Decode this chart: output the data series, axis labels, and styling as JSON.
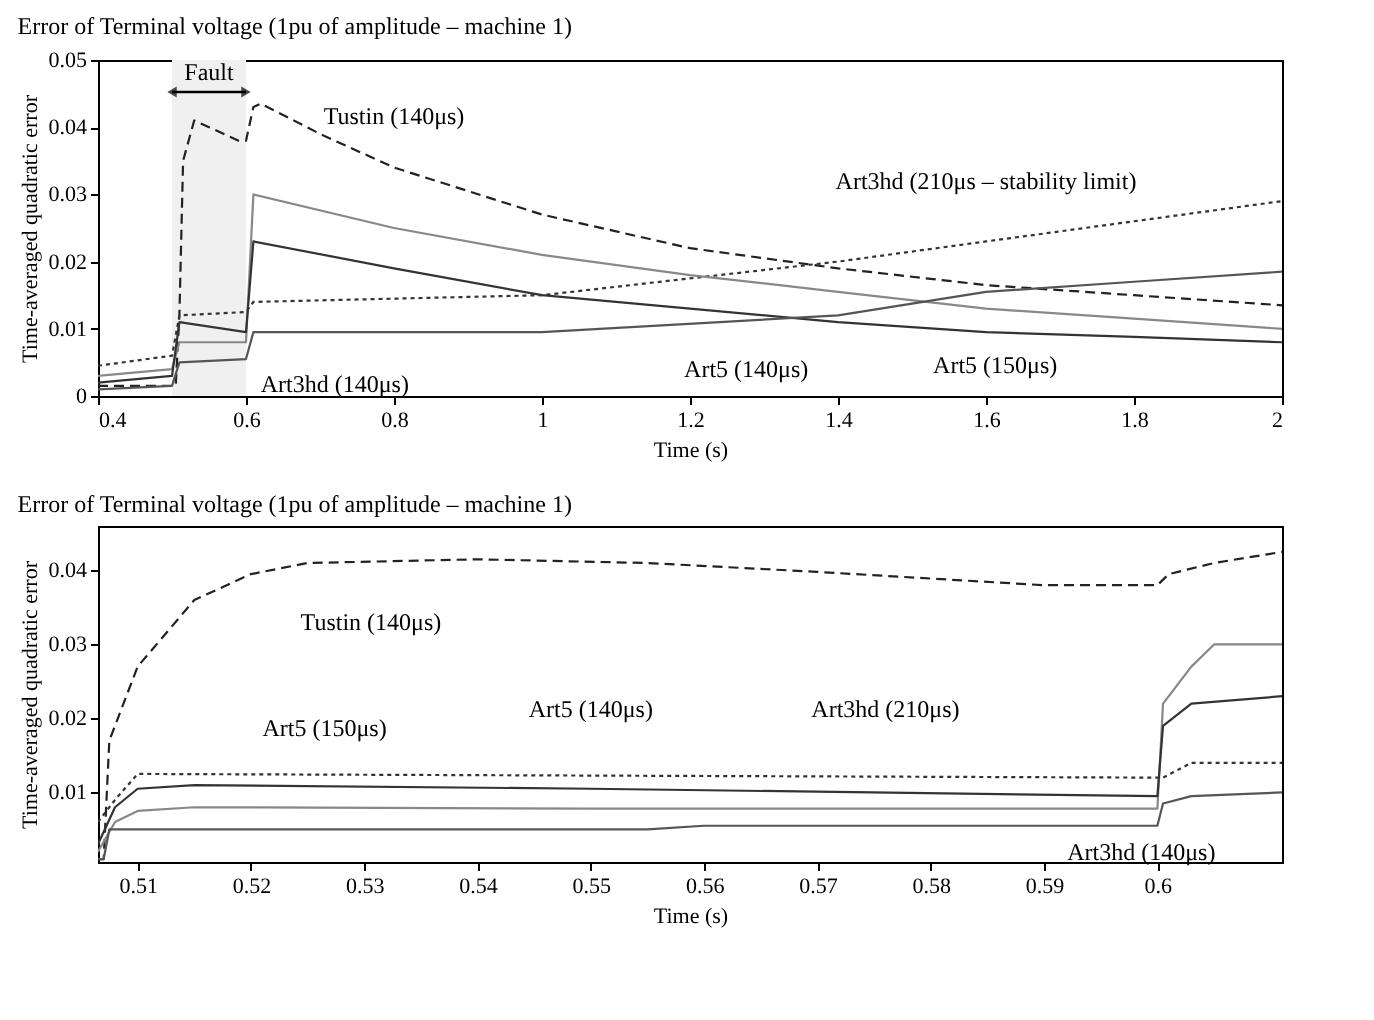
{
  "chart_data": [
    {
      "type": "line",
      "title": "Error of Terminal voltage  (1pu of amplitude – machine 1)",
      "xlabel": "Time (s)",
      "ylabel": "Time-averaged quadratic error",
      "xlim": [
        0.4,
        2
      ],
      "xticks": [
        0.4,
        0.6,
        0.8,
        1,
        1.2,
        1.4,
        1.6,
        1.8,
        2
      ],
      "ylim": [
        0,
        0.05
      ],
      "yticks": [
        0,
        0.01,
        0.02,
        0.03,
        0.04,
        0.05
      ],
      "grid": false,
      "bands": [
        {
          "axis": "x",
          "from": 0.5,
          "to": 0.6,
          "label": "Fault",
          "color": "#f0f0f0"
        }
      ],
      "series": [
        {
          "color": "#222222",
          "line_style": "dashed",
          "x": [
            0.4,
            0.505,
            0.51,
            0.515,
            0.53,
            0.55,
            0.59,
            0.6,
            0.61,
            0.62,
            0.7,
            0.8,
            1.0,
            1.2,
            1.4,
            1.6,
            1.8,
            2.0
          ],
          "values": [
            0.0015,
            0.0015,
            0.012,
            0.035,
            0.041,
            0.04,
            0.038,
            0.038,
            0.043,
            0.0435,
            0.039,
            0.034,
            0.027,
            0.022,
            0.019,
            0.0165,
            0.015,
            0.0135
          ]
        },
        {
          "color": "#333333",
          "line_style": "dotted",
          "x": [
            0.4,
            0.5,
            0.51,
            0.6,
            0.61,
            1.0,
            1.4,
            1.6,
            1.8,
            2.0
          ],
          "values": [
            0.0045,
            0.006,
            0.012,
            0.0125,
            0.014,
            0.015,
            0.02,
            0.023,
            0.026,
            0.029
          ]
        },
        {
          "color": "#888888",
          "line_style": "solid",
          "x": [
            0.4,
            0.5,
            0.51,
            0.6,
            0.61,
            0.8,
            1.0,
            1.2,
            1.4,
            1.6,
            1.8,
            2.0
          ],
          "values": [
            0.003,
            0.004,
            0.008,
            0.008,
            0.03,
            0.025,
            0.021,
            0.018,
            0.0155,
            0.013,
            0.0115,
            0.01
          ]
        },
        {
          "color": "#333333",
          "line_style": "solid",
          "x": [
            0.4,
            0.5,
            0.51,
            0.6,
            0.61,
            0.8,
            1.0,
            1.2,
            1.4,
            1.6,
            1.8,
            2.0
          ],
          "values": [
            0.002,
            0.003,
            0.011,
            0.0095,
            0.023,
            0.019,
            0.015,
            0.013,
            0.011,
            0.0095,
            0.0088,
            0.008
          ]
        },
        {
          "color": "#555555",
          "line_style": "solid",
          "x": [
            0.4,
            0.5,
            0.51,
            0.6,
            0.61,
            1.0,
            1.4,
            1.6,
            1.8,
            2.0
          ],
          "values": [
            0.001,
            0.0015,
            0.005,
            0.0055,
            0.0095,
            0.0095,
            0.012,
            0.0155,
            0.017,
            0.0185
          ]
        }
      ],
      "annotations": [
        {
          "text": "Tustin (140μs)",
          "x": 0.8,
          "y": 0.034
        },
        {
          "text": "Art3hd (210μs – stability limit)",
          "x": 1.6,
          "y": 0.023
        },
        {
          "text": "Art3hd (140μs)",
          "x": 0.72,
          "y": 0.0095
        },
        {
          "text": "Art5 (140μs)",
          "x": 1.33,
          "y": 0.0117
        },
        {
          "text": "Art5 (150μs)",
          "x": 1.68,
          "y": 0.0124
        }
      ]
    },
    {
      "type": "line",
      "title": "Error of Terminal voltage (1pu of amplitude – machine 1)",
      "xlabel": "Time (s)",
      "ylabel": "Time-averaged quadratic error",
      "xlim": [
        0.5065,
        0.611
      ],
      "xticks": [
        0.51,
        0.52,
        0.53,
        0.54,
        0.55,
        0.56,
        0.57,
        0.58,
        0.59,
        0.6
      ],
      "ylim": [
        0.0006,
        0.046
      ],
      "yticks": [
        0.01,
        0.02,
        0.03,
        0.04
      ],
      "grid": false,
      "series": [
        {
          "color": "#222222",
          "line_style": "dashed",
          "x": [
            0.5065,
            0.507,
            0.5075,
            0.51,
            0.515,
            0.52,
            0.525,
            0.54,
            0.555,
            0.57,
            0.59,
            0.6,
            0.601,
            0.605,
            0.611
          ],
          "values": [
            0.001,
            0.001,
            0.017,
            0.027,
            0.036,
            0.0395,
            0.041,
            0.0415,
            0.041,
            0.0398,
            0.038,
            0.038,
            0.0395,
            0.041,
            0.0425
          ]
        },
        {
          "color": "#333333",
          "line_style": "dotted",
          "x": [
            0.5065,
            0.508,
            0.51,
            0.6,
            0.6005,
            0.603,
            0.611
          ],
          "values": [
            0.006,
            0.009,
            0.0125,
            0.012,
            0.012,
            0.014,
            0.014
          ]
        },
        {
          "color": "#888888",
          "line_style": "solid",
          "x": [
            0.5065,
            0.508,
            0.51,
            0.515,
            0.55,
            0.6,
            0.6005,
            0.603,
            0.605,
            0.611
          ],
          "values": [
            0.002,
            0.006,
            0.0075,
            0.008,
            0.0078,
            0.0078,
            0.022,
            0.027,
            0.03,
            0.03
          ]
        },
        {
          "color": "#333333",
          "line_style": "solid",
          "x": [
            0.5065,
            0.508,
            0.51,
            0.515,
            0.55,
            0.6,
            0.6005,
            0.603,
            0.611
          ],
          "values": [
            0.003,
            0.008,
            0.0105,
            0.011,
            0.0105,
            0.0095,
            0.019,
            0.022,
            0.023
          ]
        },
        {
          "color": "#555555",
          "line_style": "solid",
          "x": [
            0.5065,
            0.507,
            0.5075,
            0.555,
            0.56,
            0.6,
            0.6005,
            0.603,
            0.611
          ],
          "values": [
            0.001,
            0.001,
            0.005,
            0.005,
            0.0055,
            0.0055,
            0.0085,
            0.0095,
            0.01
          ]
        }
      ],
      "annotations": [
        {
          "text": "Tustin (140μs)",
          "x": 0.52,
          "y": 0.0395
        },
        {
          "text": "Art5 (150μs)",
          "x": 0.5265,
          "y": 0.0079
        },
        {
          "text": "Art5 (140μs)",
          "x": 0.55,
          "y": 0.0105
        },
        {
          "text": "Art3hd (210μs)",
          "x": 0.576,
          "y": 0.0121
        },
        {
          "text": "Art3hd (140μs)",
          "x": 0.603,
          "y": 0.0095
        }
      ]
    }
  ]
}
